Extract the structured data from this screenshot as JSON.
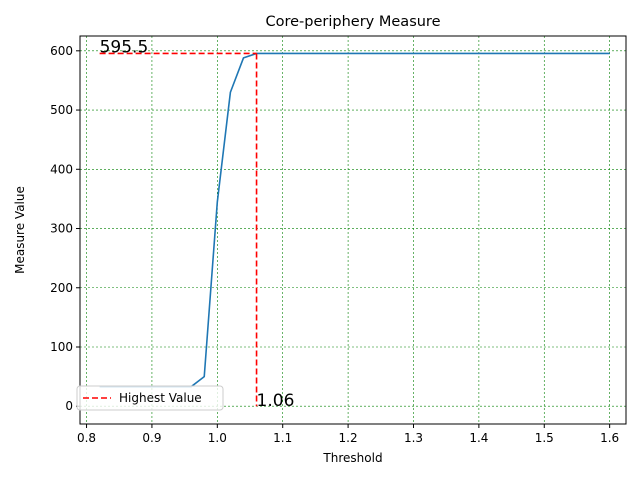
{
  "chart_data": {
    "type": "line",
    "title": "Core-periphery Measure",
    "xlabel": "Threshold",
    "ylabel": "Measure Value",
    "xlim": [
      0.79,
      1.625
    ],
    "ylim": [
      -30,
      625
    ],
    "x_ticks": [
      0.8,
      0.9,
      1.0,
      1.1,
      1.2,
      1.3,
      1.4,
      1.5,
      1.6
    ],
    "x_tick_labels": [
      "0.8",
      "0.9",
      "1.0",
      "1.1",
      "1.2",
      "1.3",
      "1.4",
      "1.5",
      "1.6"
    ],
    "y_ticks": [
      0,
      100,
      200,
      300,
      400,
      500,
      600
    ],
    "y_tick_labels": [
      "0",
      "100",
      "200",
      "300",
      "400",
      "500",
      "600"
    ],
    "grid": true,
    "grid_color": "#008000",
    "series": [
      {
        "color": "#1f77b4",
        "x": [
          0.82,
          0.84,
          0.86,
          0.88,
          0.9,
          0.92,
          0.94,
          0.96,
          0.98,
          1.0,
          1.02,
          1.04,
          1.06,
          1.08,
          1.1,
          1.2,
          1.3,
          1.4,
          1.5,
          1.6
        ],
        "y": [
          33,
          33,
          33,
          33,
          33,
          33,
          33,
          33,
          50,
          345,
          530,
          588,
          595.5,
          595.5,
          595.5,
          595.5,
          595.5,
          595.5,
          595.5,
          595.5
        ]
      }
    ],
    "highest_value": {
      "legend": "Highest Value",
      "color": "#ff0000",
      "x": 1.06,
      "y": 595.5,
      "y_label": "595.5",
      "x_label": "1.06",
      "line_start_x": 0.82
    },
    "legend_position": "lower-left"
  }
}
